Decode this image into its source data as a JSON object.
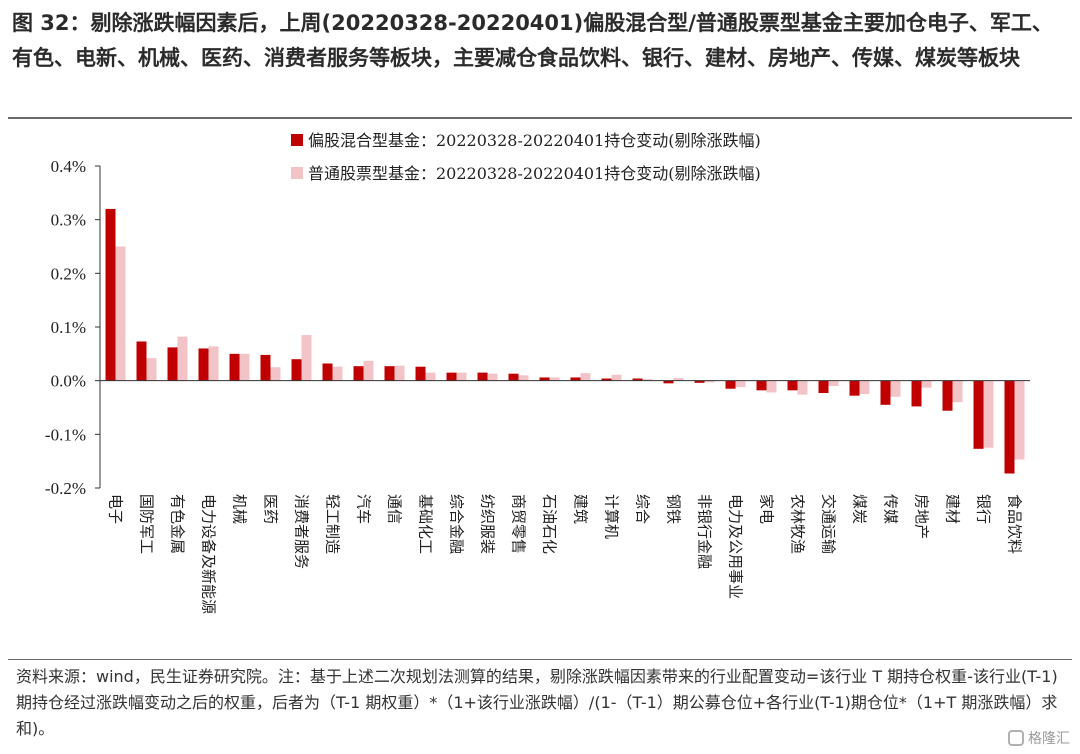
{
  "header": {
    "title": "图 32：剔除涨跌幅因素后，上周(20220328-20220401)偏股混合型/普通股票型基金主要加仓电子、军工、有色、电新、机械、医药、消费者服务等板块，主要减仓食品饮料、银行、建材、房地产、传媒、煤炭等板块"
  },
  "footer": {
    "note": "资料来源：wind，民生证券研究院。注：基于上述二次规划法测算的结果，剔除涨跌幅因素带来的行业配置变动=该行业 T 期持仓权重-该行业(T-1)期持仓经过涨跌幅变动之后的权重，后者为（T-1 期权重）*（1+该行业涨跌幅）/(1-（T-1）期公募仓位+各行业(T-1)期仓位*（1+T 期涨跌幅）求和)。",
    "watermark": "格隆汇"
  },
  "chart_data": {
    "type": "bar",
    "title": "",
    "xlabel": "",
    "ylabel": "",
    "ylim": [
      -0.2,
      0.4
    ],
    "yticks": [
      0.4,
      0.3,
      0.2,
      0.1,
      0.0,
      -0.1,
      -0.2
    ],
    "ytick_labels": [
      "0.4%",
      "0.3%",
      "0.2%",
      "0.1%",
      "0.0%",
      "-0.1%",
      "-0.2%"
    ],
    "grid": false,
    "legend_position": "top-center",
    "categories": [
      "电子",
      "国防军工",
      "有色金属",
      "电力设备及新能源",
      "机械",
      "医药",
      "消费者服务",
      "轻工制造",
      "汽车",
      "通信",
      "基础化工",
      "综合金融",
      "纺织服装",
      "商贸零售",
      "石油石化",
      "建筑",
      "计算机",
      "综合",
      "钢铁",
      "非银行金融",
      "电力及公用事业",
      "家电",
      "农林牧渔",
      "交通运输",
      "煤炭",
      "传媒",
      "房地产",
      "建材",
      "银行",
      "食品饮料"
    ],
    "series": [
      {
        "name": "偏股混合型基金：20220328-20220401持仓变动(剔除涨跌幅)",
        "color": "#c00000",
        "values": [
          0.32,
          0.073,
          0.062,
          0.06,
          0.05,
          0.048,
          0.04,
          0.032,
          0.027,
          0.027,
          0.026,
          0.015,
          0.015,
          0.013,
          0.006,
          0.006,
          0.004,
          0.004,
          -0.005,
          -0.004,
          -0.015,
          -0.018,
          -0.018,
          -0.023,
          -0.028,
          -0.045,
          -0.048,
          -0.056,
          -0.127,
          -0.173
        ]
      },
      {
        "name": "普通股票型基金：20220328-20220401持仓变动(剔除涨跌幅)",
        "color": "#f2c4c8",
        "values": [
          0.25,
          0.042,
          0.082,
          0.064,
          0.05,
          0.025,
          0.085,
          0.026,
          0.037,
          0.028,
          0.015,
          0.015,
          0.013,
          0.01,
          0.006,
          0.014,
          0.011,
          0.003,
          0.005,
          -0.003,
          -0.012,
          -0.022,
          -0.026,
          -0.01,
          -0.025,
          -0.03,
          -0.013,
          -0.04,
          -0.125,
          -0.147
        ]
      }
    ]
  }
}
